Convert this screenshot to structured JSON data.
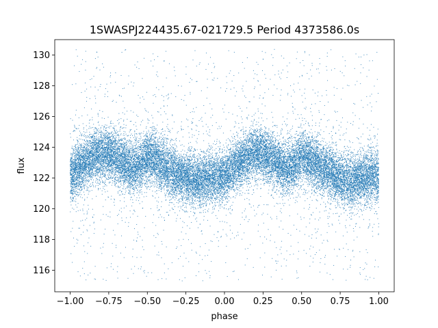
{
  "chart_data": {
    "type": "scatter",
    "title": "1SWASPJ224435.67-021729.5 Period 4373586.0s",
    "xlabel": "phase",
    "ylabel": "flux",
    "xlim": [
      -1.1,
      1.1
    ],
    "ylim": [
      114.6,
      131.0
    ],
    "x_ticks": [
      -1.0,
      -0.75,
      -0.5,
      -0.25,
      0.0,
      0.25,
      0.5,
      0.75,
      1.0
    ],
    "x_tick_labels": [
      "−1.00",
      "−0.75",
      "−0.50",
      "−0.25",
      "0.00",
      "0.25",
      "0.50",
      "0.75",
      "1.00"
    ],
    "y_ticks": [
      116,
      118,
      120,
      122,
      124,
      126,
      128,
      130
    ],
    "y_tick_labels": [
      "116",
      "118",
      "120",
      "122",
      "124",
      "126",
      "128",
      "130"
    ],
    "grid": false,
    "legend": "none",
    "marker_color": "#1f77b4",
    "series": [
      {
        "phase_range": [
          -1.0,
          1.0
        ],
        "period_in_phase": 1.0,
        "typical_spread": 1.1,
        "scatter_ymin": 115.3,
        "scatter_ymax": 130.4,
        "approx_points": 24000,
        "mean_flux_profile": {
          "phase": [
            0.0,
            0.05,
            0.1,
            0.15,
            0.2,
            0.25,
            0.3,
            0.35,
            0.4,
            0.45,
            0.5,
            0.55,
            0.6,
            0.65,
            0.7,
            0.75,
            0.8,
            0.85,
            0.9,
            0.95,
            1.0
          ],
          "flux": [
            122.1,
            122.6,
            123.0,
            123.4,
            123.6,
            123.6,
            123.3,
            123.0,
            122.6,
            122.8,
            123.4,
            123.2,
            122.8,
            122.5,
            122.3,
            122.0,
            121.8,
            121.8,
            122.0,
            122.1,
            122.1
          ]
        }
      }
    ]
  }
}
